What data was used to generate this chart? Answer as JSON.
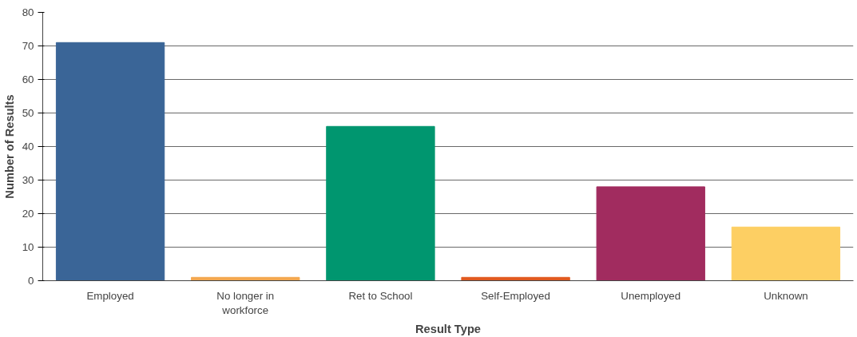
{
  "chart_data": {
    "type": "bar",
    "xlabel": "Result Type",
    "ylabel": "Number of Results",
    "categories": [
      "Employed",
      "No longer in\nworkforce",
      "Ret to School",
      "Self-Employed",
      "Unemployed",
      "Unknown"
    ],
    "values": [
      71,
      1,
      46,
      1,
      28,
      16
    ],
    "colors": [
      "#3a6597",
      "#f3a74f",
      "#00966f",
      "#e0591f",
      "#a12c5f",
      "#fdcf63"
    ],
    "ylim": [
      0,
      80
    ],
    "yticks": [
      0,
      10,
      20,
      30,
      40,
      50,
      60,
      70,
      80
    ],
    "grid": "y"
  }
}
